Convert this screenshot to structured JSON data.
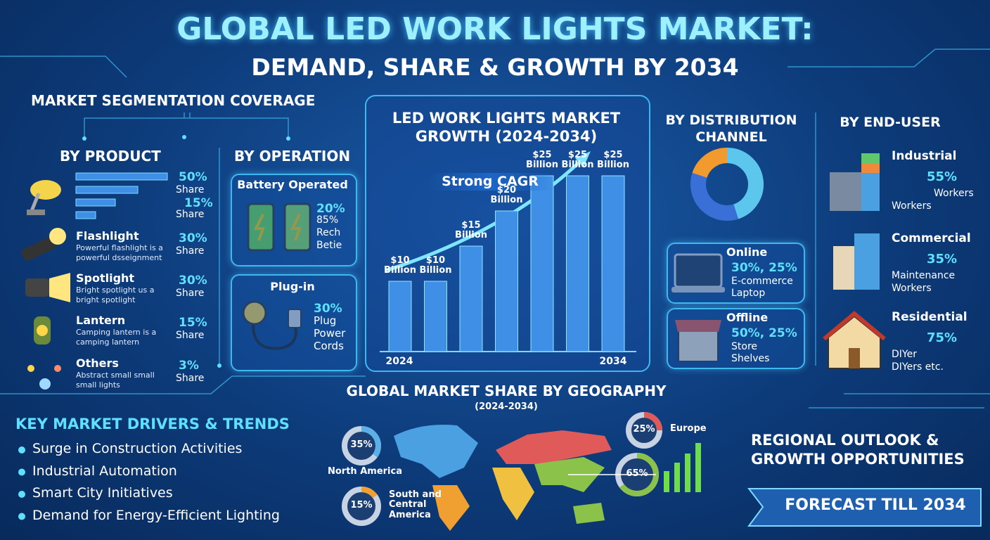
{
  "header": {
    "title": "GLOBAL LED WORK LIGHTS MARKET:",
    "subtitle": "DEMAND, SHARE & GROWTH BY 2034"
  },
  "segmentation": {
    "title": "MARKET SEGMENTATION COVERAGE"
  },
  "by_product": {
    "title": "BY PRODUCT",
    "top": [
      {
        "share": "50%",
        "unit": "Share"
      },
      {
        "share": "15%",
        "unit": "Share"
      }
    ],
    "items": [
      {
        "name": "Flashlight",
        "desc": "Powerful flashlight is a powerful dsseignment",
        "share": "30%",
        "unit": "Share"
      },
      {
        "name": "Spotlight",
        "desc": "Bright spotlight us a bright spotlight",
        "share": "30%",
        "unit": "Share"
      },
      {
        "name": "Lantern",
        "desc": "Camping lantern is a camping lantern",
        "share": "15%",
        "unit": "Share"
      },
      {
        "name": "Others",
        "desc": "Abstract small small small lights",
        "share": "3%",
        "unit": "Share"
      }
    ]
  },
  "by_operation": {
    "title": "BY OPERATION",
    "battery": {
      "name": "Battery Operated",
      "lines": [
        "20%",
        "85%",
        "Rech",
        "Betie"
      ]
    },
    "plugin": {
      "name": "Plug-in",
      "lines": [
        "30%",
        "Plug",
        "Power",
        "Cords"
      ]
    }
  },
  "chart_data": [
    {
      "type": "bar",
      "title": "LED WORK LIGHTS MARKET GROWTH (2024-2034)",
      "annotation": "Strong CAGR",
      "categories": [
        "2024",
        null,
        null,
        null,
        null,
        null,
        "2034"
      ],
      "values": [
        10,
        10,
        15,
        20,
        25,
        25,
        25
      ],
      "value_labels": [
        "$10 Billion",
        "$10 Billion",
        "$15 Billion",
        "$20 Billion",
        "$25 Billion",
        "$25 Billion",
        "$25 Billion"
      ],
      "color": "#3f8fe6"
    },
    {
      "type": "pie",
      "categories": [
        null,
        null,
        null
      ],
      "values": [
        45,
        35,
        20
      ],
      "colors": [
        "#5cc6ec",
        "#3a6fd8",
        "#f29a2e"
      ]
    },
    {
      "type": "donut",
      "title": "GLOBAL MARKET SHARE BY GEOGRAPHY",
      "subtitle": "(2024-2034)",
      "categories": [
        "North America",
        "South and Central America",
        "Europe",
        null
      ],
      "values": [
        35,
        15,
        25,
        65
      ],
      "value_labels": [
        "35%",
        "15%",
        "25%",
        "65%"
      ],
      "colors": [
        "#5bb0e8",
        "#f0a030",
        "#e05a5a",
        "#8bc34a"
      ]
    }
  ],
  "distribution": {
    "title": "BY DISTRIBUTION CHANNEL",
    "online": {
      "name": "Online",
      "share": "30%, 25%",
      "lines": [
        "E-commerce",
        "Laptop"
      ]
    },
    "offline": {
      "name": "Offline",
      "share": "50%, 25%",
      "lines": [
        "Store",
        "Shelves"
      ]
    }
  },
  "end_user": {
    "title": "BY END-USER",
    "items": [
      {
        "name": "Industrial",
        "share": "55%",
        "lines": [
          "Workers",
          "Workers"
        ]
      },
      {
        "name": "Commercial",
        "share": "35%",
        "lines": [
          "Maintenance",
          "Workers"
        ]
      },
      {
        "name": "Residential",
        "share": "75%",
        "lines": [
          "DIYer",
          "DIYers etc."
        ]
      }
    ]
  },
  "drivers": {
    "title": "KEY MARKET DRIVERS & TRENDS",
    "items": [
      "Surge in Construction Activities",
      "Industrial Automation",
      "Smart City Initiatives",
      "Demand for Energy-Efficient Lighting"
    ]
  },
  "regional": {
    "title": "REGIONAL OUTLOOK & GROWTH OPPORTUNITIES",
    "banner": "FORECAST TILL 2034"
  }
}
